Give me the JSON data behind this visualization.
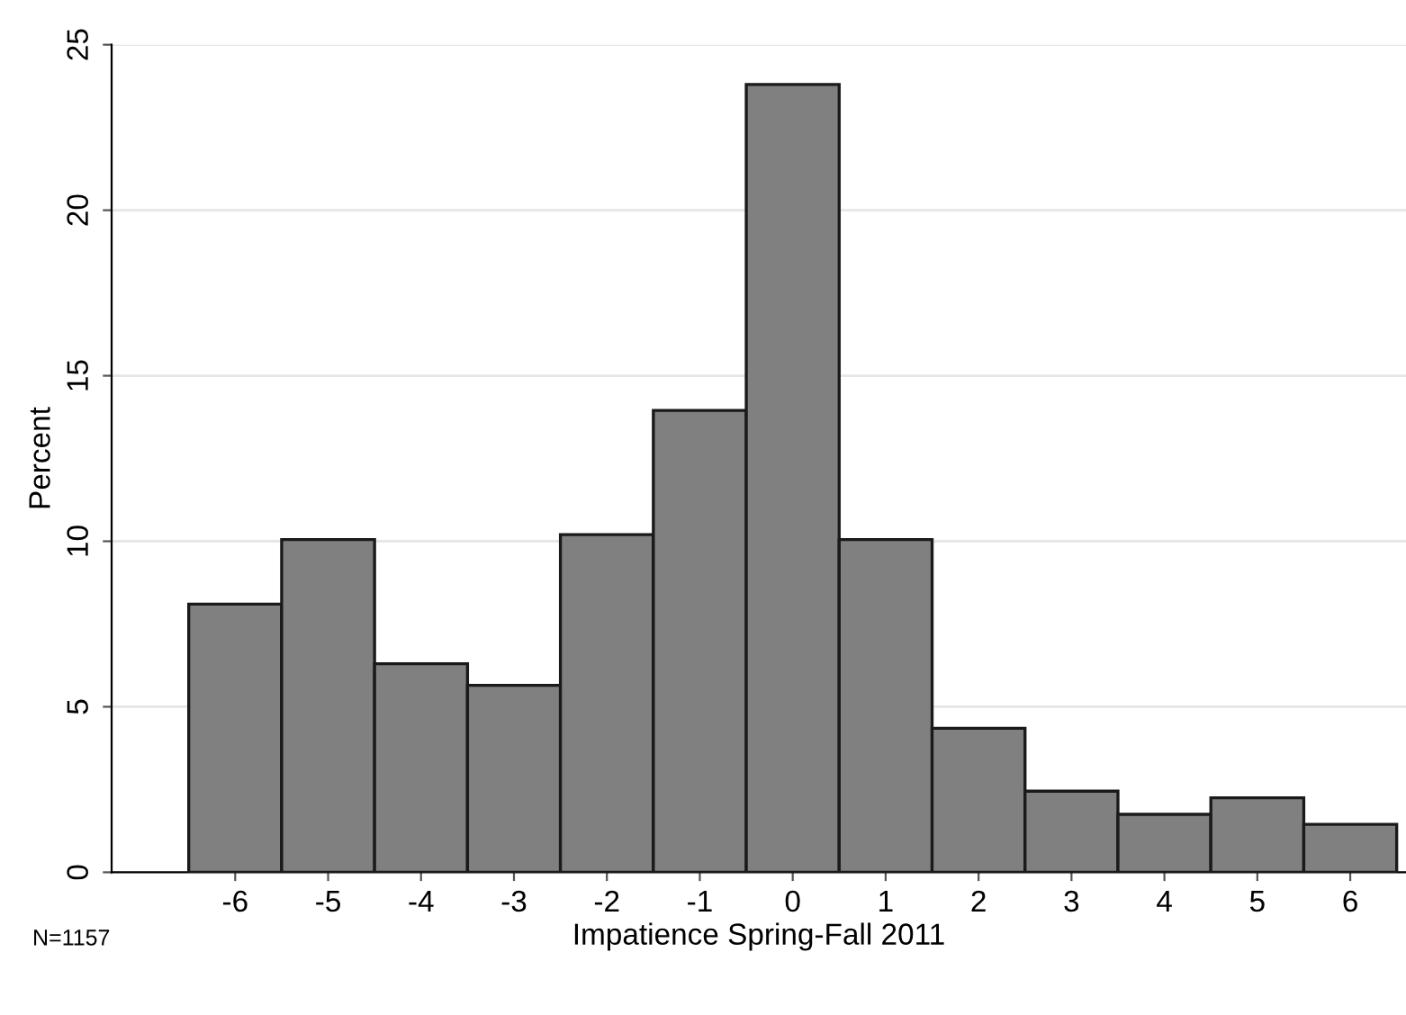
{
  "chart_data": {
    "type": "histogram",
    "xlabel": "Impatience Spring-Fall 2011",
    "ylabel": "Percent",
    "bins": [
      -6.5,
      -5.5,
      -4.5,
      -3.5,
      -2.5,
      -1.5,
      -0.5,
      0.5,
      1.5,
      2.5,
      3.5,
      4.5,
      5.5,
      6.5
    ],
    "values": [
      8.1,
      10.05,
      6.3,
      5.65,
      10.2,
      13.95,
      23.8,
      10.05,
      4.35,
      2.45,
      1.75,
      2.25,
      1.45
    ],
    "color": "#808080",
    "xlim": [
      -7.33,
      6.6
    ],
    "xticks": [
      -6,
      -5,
      -4,
      -3,
      -2,
      -1,
      0,
      1,
      2,
      3,
      4,
      5,
      6
    ],
    "ylim": [
      0,
      25
    ],
    "yticks": [
      0,
      5,
      10,
      15,
      20,
      25
    ],
    "grid": "y",
    "annotations": [
      "N=1157"
    ]
  }
}
